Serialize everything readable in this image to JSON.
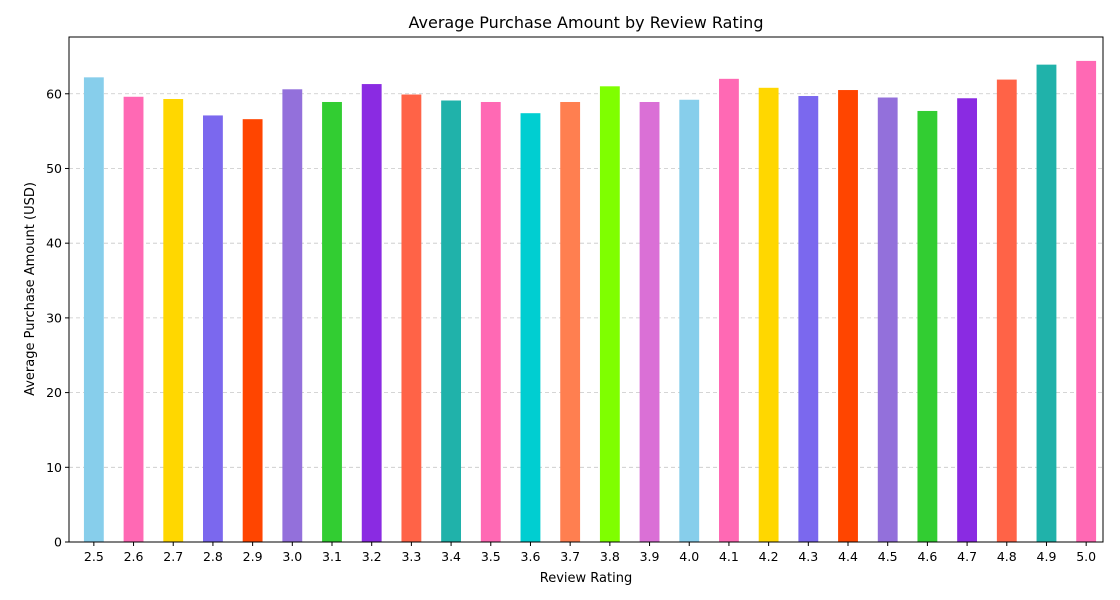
{
  "chart_data": {
    "type": "bar",
    "title": "Average Purchase Amount by Review Rating",
    "xlabel": "Review Rating",
    "ylabel": "Average Purchase Amount (USD)",
    "categories": [
      "2.5",
      "2.6",
      "2.7",
      "2.8",
      "2.9",
      "3.0",
      "3.1",
      "3.2",
      "3.3",
      "3.4",
      "3.5",
      "3.6",
      "3.7",
      "3.8",
      "3.9",
      "4.0",
      "4.1",
      "4.2",
      "4.3",
      "4.4",
      "4.5",
      "4.6",
      "4.7",
      "4.8",
      "4.9",
      "5.0"
    ],
    "values": [
      62.2,
      59.6,
      59.3,
      57.1,
      56.6,
      60.6,
      58.9,
      61.3,
      59.9,
      59.1,
      58.9,
      57.4,
      58.9,
      61.0,
      58.9,
      59.2,
      62.0,
      60.8,
      59.7,
      60.5,
      59.5,
      57.7,
      59.4,
      61.9,
      63.9,
      64.4
    ],
    "colors": [
      "#87CEEB",
      "#FF69B4",
      "#FFD700",
      "#7B68EE",
      "#FF4500",
      "#9370DB",
      "#32CD32",
      "#8A2BE2",
      "#FF6347",
      "#20B2AA",
      "#FF69B4",
      "#00CED1",
      "#FF7F50",
      "#7FFF00",
      "#DA70D6",
      "#87CEEB",
      "#FF69B4",
      "#FFD700",
      "#7B68EE",
      "#FF4500",
      "#9370DB",
      "#32CD32",
      "#8A2BE2",
      "#FF6347",
      "#20B2AA",
      "#FF69B4"
    ],
    "ylim": [
      0,
      67.6
    ],
    "yticks": [
      0,
      10,
      20,
      30,
      40,
      50,
      60
    ],
    "grid": "y-dashed",
    "legend": "none"
  }
}
